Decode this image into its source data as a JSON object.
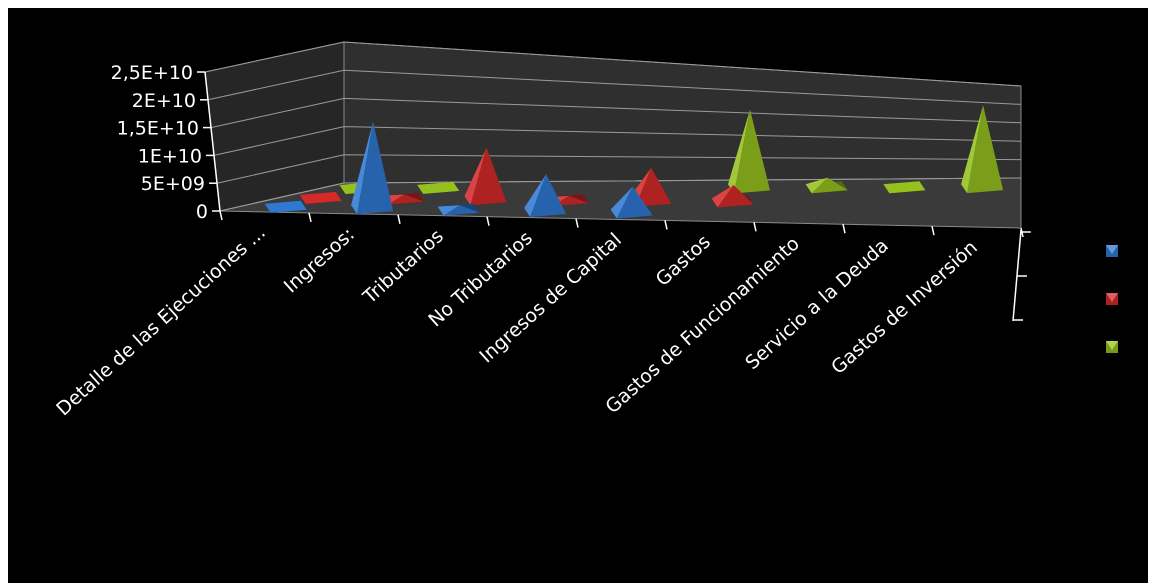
{
  "chart_data": {
    "type": "bar",
    "bar_shape": "pyramid-3d",
    "categories": [
      "Detalle de las Ejecuciones ...",
      "Ingresos:",
      "Tributarios",
      "No Tributarios",
      "Ingresos de Capital",
      "Gastos",
      "Gastos de Funcionamiento",
      "Servicio a la Deuda",
      "Gastos de Inversión"
    ],
    "series": [
      {
        "color": "#2f79d3",
        "values": [
          0,
          20000000000,
          1000000000,
          8500000000,
          6000000000,
          null,
          null,
          null,
          null
        ]
      },
      {
        "color": "#d42a2a",
        "values": [
          0,
          1000000000,
          12500000000,
          1000000000,
          8000000000,
          4000000000,
          null,
          null,
          null
        ]
      },
      {
        "color": "#95c11f",
        "values": [
          1000000000,
          1000000000,
          null,
          null,
          null,
          20000000000,
          2500000000,
          1000000000,
          21000000000
        ]
      }
    ],
    "yticks": [
      "2,5E+10",
      "2E+10",
      "1,5E+10",
      "1E+10",
      "5E+09",
      "0"
    ],
    "ylim": [
      0,
      25000000000
    ],
    "grid": true,
    "legend_position": "right",
    "background": "#000000"
  }
}
